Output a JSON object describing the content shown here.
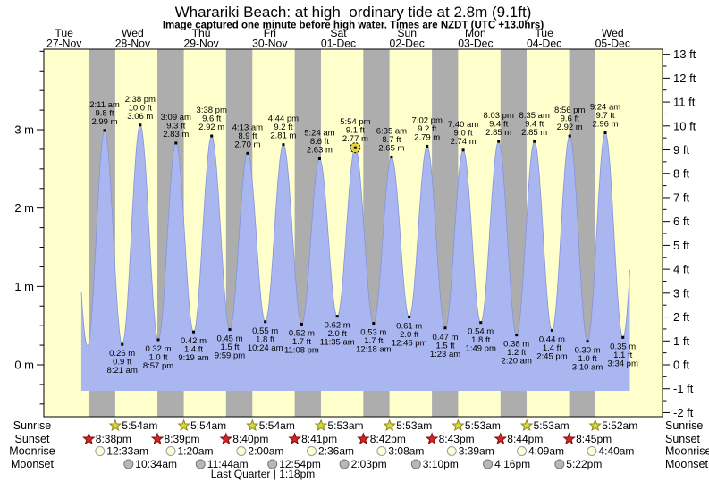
{
  "header": {
    "title": "Wharariki Beach: at high  ordinary tide at 2.8m (9.1ft)",
    "subtitle": "Image captured one minute before high water. Times are NZDT (UTC +13.0hrs)"
  },
  "days": [
    {
      "weekday": "Tue",
      "date": "27-Nov"
    },
    {
      "weekday": "Wed",
      "date": "28-Nov"
    },
    {
      "weekday": "Thu",
      "date": "29-Nov"
    },
    {
      "weekday": "Fri",
      "date": "30-Nov"
    },
    {
      "weekday": "Sat",
      "date": "01-Dec"
    },
    {
      "weekday": "Sun",
      "date": "02-Dec"
    },
    {
      "weekday": "Mon",
      "date": "03-Dec"
    },
    {
      "weekday": "Tue",
      "date": "04-Dec"
    },
    {
      "weekday": "Wed",
      "date": "05-Dec"
    }
  ],
  "chart_data": {
    "type": "area",
    "title": "Wharariki Beach: at high  ordinary tide at 2.8m (9.1ft)",
    "subtitle": "Image captured one minute before high water. Times are NZDT (UTC +13.0hrs)",
    "axes": {
      "left": {
        "unit": "m",
        "tick_labels": [
          "0 m",
          "1 m",
          "2 m",
          "3 m"
        ],
        "major_values": [
          0,
          1,
          2,
          3
        ],
        "minor_step": 0.25
      },
      "right": {
        "unit": "ft",
        "min": -2,
        "max": 13,
        "minor_step": 0.5
      }
    },
    "tide_events": [
      {
        "day": 1,
        "time": "2:11 am",
        "type": "high",
        "height_ft": "9.8",
        "height_m": "2.99"
      },
      {
        "day": 1,
        "time": "8:21 am",
        "type": "low",
        "height_ft": "0.9",
        "height_m": "0.26"
      },
      {
        "day": 1,
        "time": "2:38 pm",
        "type": "high",
        "height_ft": "10.0",
        "height_m": "3.06"
      },
      {
        "day": 1,
        "time": "8:57 pm",
        "type": "low",
        "height_ft": "1.0",
        "height_m": "0.32"
      },
      {
        "day": 2,
        "time": "3:09 am",
        "type": "high",
        "height_ft": "9.3",
        "height_m": "2.83"
      },
      {
        "day": 2,
        "time": "9:19 am",
        "type": "low",
        "height_ft": "1.4",
        "height_m": "0.42"
      },
      {
        "day": 2,
        "time": "3:38 pm",
        "type": "high",
        "height_ft": "9.6",
        "height_m": "2.92"
      },
      {
        "day": 2,
        "time": "9:59 pm",
        "type": "low",
        "height_ft": "1.5",
        "height_m": "0.45"
      },
      {
        "day": 3,
        "time": "4:13 am",
        "type": "high",
        "height_ft": "8.9",
        "height_m": "2.70"
      },
      {
        "day": 3,
        "time": "10:24 am",
        "type": "low",
        "height_ft": "1.8",
        "height_m": "0.55"
      },
      {
        "day": 3,
        "time": "4:44 pm",
        "type": "high",
        "height_ft": "9.2",
        "height_m": "2.81"
      },
      {
        "day": 3,
        "time": "11:08 pm",
        "type": "low",
        "height_ft": "1.7",
        "height_m": "0.52"
      },
      {
        "day": 4,
        "time": "5:24 am",
        "type": "high",
        "height_ft": "8.6",
        "height_m": "2.63"
      },
      {
        "day": 4,
        "time": "11:35 am",
        "type": "low",
        "height_ft": "2.0",
        "height_m": "0.62"
      },
      {
        "day": 4,
        "time": "5:54 pm",
        "type": "high",
        "height_ft": "9.1",
        "height_m": "2.77",
        "capture": true
      },
      {
        "day": 5,
        "time": "12:18 am",
        "type": "low",
        "height_ft": "1.7",
        "height_m": "0.53"
      },
      {
        "day": 5,
        "time": "6:35 am",
        "type": "high",
        "height_ft": "8.7",
        "height_m": "2.65"
      },
      {
        "day": 5,
        "time": "12:46 pm",
        "type": "low",
        "height_ft": "2.0",
        "height_m": "0.61"
      },
      {
        "day": 5,
        "time": "7:02 pm",
        "type": "high",
        "height_ft": "9.2",
        "height_m": "2.79"
      },
      {
        "day": 6,
        "time": "1:23 am",
        "type": "low",
        "height_ft": "1.5",
        "height_m": "0.47"
      },
      {
        "day": 6,
        "time": "7:40 am",
        "type": "high",
        "height_ft": "9.0",
        "height_m": "2.74"
      },
      {
        "day": 6,
        "time": "1:49 pm",
        "type": "low",
        "height_ft": "1.8",
        "height_m": "0.54"
      },
      {
        "day": 6,
        "time": "8:03 pm",
        "type": "high",
        "height_ft": "9.4",
        "height_m": "2.85"
      },
      {
        "day": 7,
        "time": "2:20 am",
        "type": "low",
        "height_ft": "1.2",
        "height_m": "0.38"
      },
      {
        "day": 7,
        "time": "8:35 am",
        "type": "high",
        "height_ft": "9.4",
        "height_m": "2.85"
      },
      {
        "day": 7,
        "time": "2:45 pm",
        "type": "low",
        "height_ft": "1.4",
        "height_m": "0.44"
      },
      {
        "day": 7,
        "time": "8:56 pm",
        "type": "high",
        "height_ft": "9.6",
        "height_m": "2.92"
      },
      {
        "day": 8,
        "time": "3:10 am",
        "type": "low",
        "height_ft": "1.0",
        "height_m": "0.30"
      },
      {
        "day": 8,
        "time": "9:24 am",
        "type": "high",
        "height_ft": "9.7",
        "height_m": "2.96"
      },
      {
        "day": 8,
        "time": "3:34 pm",
        "type": "low",
        "height_ft": "1.1",
        "height_m": "0.35"
      }
    ]
  },
  "astro": {
    "rows": [
      {
        "id": "sunrise",
        "label": "Sunrise",
        "icon": "sunrise-star-icon",
        "events": [
          {
            "day": 1,
            "time": "5:54am"
          },
          {
            "day": 2,
            "time": "5:54am"
          },
          {
            "day": 3,
            "time": "5:54am"
          },
          {
            "day": 4,
            "time": "5:53am"
          },
          {
            "day": 5,
            "time": "5:53am"
          },
          {
            "day": 6,
            "time": "5:53am"
          },
          {
            "day": 7,
            "time": "5:53am"
          },
          {
            "day": 8,
            "time": "5:52am"
          }
        ]
      },
      {
        "id": "sunset",
        "label": "Sunset",
        "icon": "sunset-star-icon",
        "events": [
          {
            "day": 0,
            "time": "8:38pm"
          },
          {
            "day": 1,
            "time": "8:39pm"
          },
          {
            "day": 2,
            "time": "8:40pm"
          },
          {
            "day": 3,
            "time": "8:41pm"
          },
          {
            "day": 4,
            "time": "8:42pm"
          },
          {
            "day": 5,
            "time": "8:43pm"
          },
          {
            "day": 6,
            "time": "8:44pm"
          },
          {
            "day": 7,
            "time": "8:45pm"
          }
        ]
      },
      {
        "id": "moonrise",
        "label": "Moonrise",
        "icon": "moonrise-circle-icon",
        "events": [
          {
            "day": 1,
            "time": "12:33am"
          },
          {
            "day": 2,
            "time": "1:20am"
          },
          {
            "day": 3,
            "time": "2:00am"
          },
          {
            "day": 4,
            "time": "2:36am"
          },
          {
            "day": 5,
            "time": "3:08am"
          },
          {
            "day": 6,
            "time": "3:39am"
          },
          {
            "day": 7,
            "time": "4:09am"
          },
          {
            "day": 8,
            "time": "4:40am"
          }
        ]
      },
      {
        "id": "moonset",
        "label": "Moonset",
        "icon": "moonset-circle-icon",
        "events": [
          {
            "day": 1,
            "time": "10:34am"
          },
          {
            "day": 2,
            "time": "11:44am"
          },
          {
            "day": 3,
            "time": "12:54pm"
          },
          {
            "day": 4,
            "time": "2:03pm"
          },
          {
            "day": 5,
            "time": "3:10pm"
          },
          {
            "day": 6,
            "time": "4:16pm"
          },
          {
            "day": 7,
            "time": "5:22pm"
          }
        ]
      }
    ],
    "moon_phase": "Last Quarter | 1:18pm"
  },
  "colors": {
    "plot_bg": "#ffffcc",
    "night_band": "#adadad",
    "tide_fill": "#aab6f0",
    "tide_stroke": "#8494dc",
    "day_label": "#f03030",
    "sunrise_star": "#d9d938",
    "sunrise_star_edge": "#8a8a20",
    "sunset_star": "#dd2222",
    "sunset_star_edge": "#7a1010",
    "moonrise_circle": "#ffffd8",
    "moonrise_circle_edge": "#999999",
    "moonset_circle": "#b8b8b8",
    "moonset_circle_edge": "#777777",
    "capture_marker": "#e8d53e"
  }
}
